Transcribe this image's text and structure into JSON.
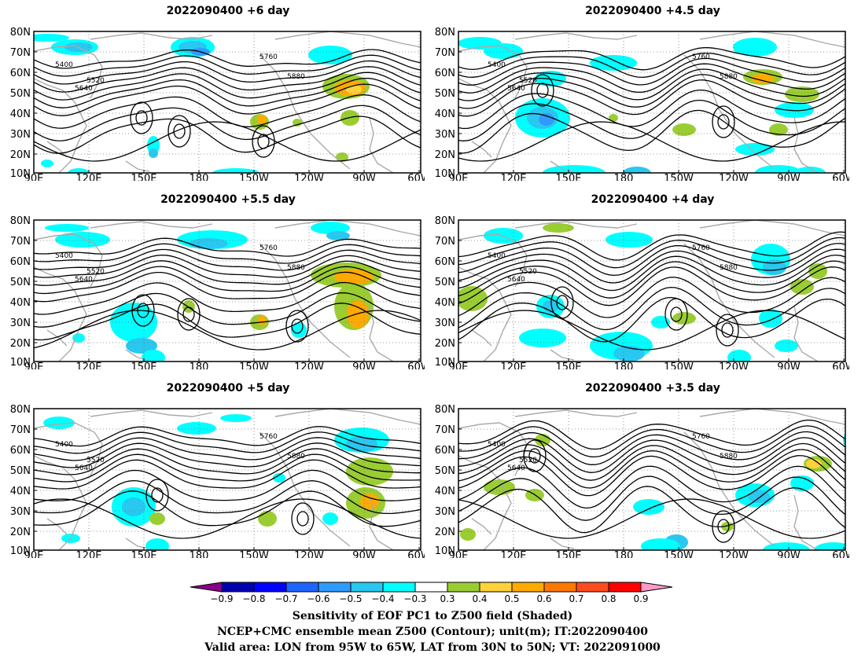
{
  "panels": [
    {
      "title": "2022090400  +6 day"
    },
    {
      "title": "2022090400  +4.5 day"
    },
    {
      "title": "2022090400  +5.5 day"
    },
    {
      "title": "2022090400  +4 day"
    },
    {
      "title": "2022090400  +5 day"
    },
    {
      "title": "2022090400  +3.5 day"
    }
  ],
  "axes": {
    "lat_labels": [
      "80N",
      "70N",
      "60N",
      "50N",
      "40N",
      "30N",
      "20N",
      "10N"
    ],
    "lon_labels": [
      "90E",
      "120E",
      "150E",
      "180",
      "150W",
      "120W",
      "90W",
      "60W"
    ]
  },
  "contour_labels": [
    "5400",
    "5520",
    "5640",
    "5760",
    "5880"
  ],
  "colorbar": {
    "labels": [
      "−0.9",
      "−0.8",
      "−0.7",
      "−0.6",
      "−0.5",
      "−0.4",
      "−0.3",
      "0.3",
      "0.4",
      "0.5",
      "0.6",
      "0.7",
      "0.8",
      "0.9"
    ],
    "colors": [
      "#8b008b",
      "#0000b0",
      "#0000ff",
      "#1e64ff",
      "#2f9bff",
      "#28c8f0",
      "#00ffff",
      "#ffffff",
      "#9acd32",
      "#ffd23c",
      "#ffaa00",
      "#ff7800",
      "#ff4b1e",
      "#ff0000",
      "#ff9ac8"
    ]
  },
  "caption": {
    "line1": "Sensitivity of EOF PC1 to Z500 field (Shaded)",
    "line2": "NCEP+CMC ensemble mean Z500 (Contour); unit(m); IT:2022090400",
    "line3": "Valid area: LON from 95W to 65W, LAT from 30N to 50N; VT: 2022091000"
  }
}
